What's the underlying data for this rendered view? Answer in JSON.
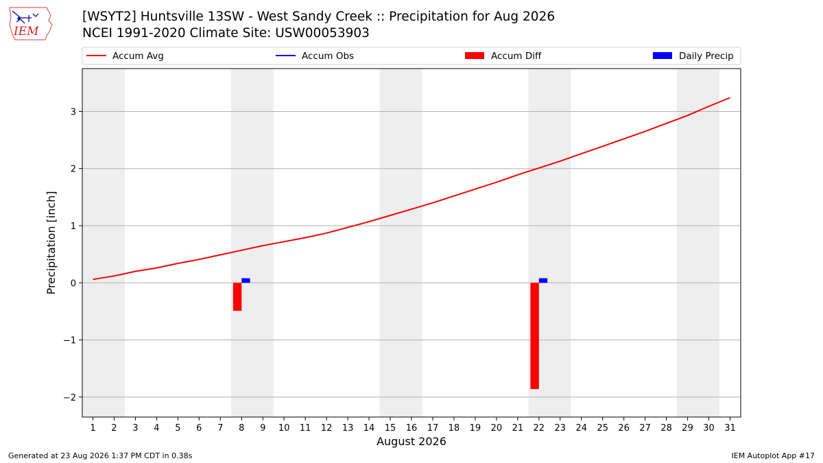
{
  "header": {
    "title": "[WSYT2] Huntsville 13SW - West Sandy Creek :: Precipitation for Aug 2026",
    "subtitle": "NCEI 1991-2020 Climate Site: USW00053903",
    "logo_text": "IEM"
  },
  "footer": {
    "left": "Generated at 23 Aug 2026 1:37 PM CDT in 0.38s",
    "right": "IEM Autoplot App #17"
  },
  "chart_data": {
    "type": "bar",
    "xlabel": "August 2026",
    "ylabel": "Precipitation [inch]",
    "xlim": [
      0.5,
      31.5
    ],
    "ylim": [
      -2.35,
      3.75
    ],
    "yticks": [
      3,
      2,
      1,
      0,
      -1,
      -2
    ],
    "ytick_labels": [
      "3",
      "2",
      "1",
      "0",
      "−1",
      "−2"
    ],
    "grid": "y",
    "legend": {
      "placement": "top",
      "entries": [
        {
          "label": "Accum Avg",
          "type": "line",
          "color": "#ff0000"
        },
        {
          "label": "Accum Obs",
          "type": "line",
          "color": "#0000ff"
        },
        {
          "label": "Accum Diff",
          "type": "bar",
          "color": "#ff0000"
        },
        {
          "label": "Daily Precip",
          "type": "bar",
          "color": "#0000ff"
        }
      ]
    },
    "days": [
      1,
      2,
      3,
      4,
      5,
      6,
      7,
      8,
      9,
      10,
      11,
      12,
      13,
      14,
      15,
      16,
      17,
      18,
      19,
      20,
      21,
      22,
      23,
      24,
      25,
      26,
      27,
      28,
      29,
      30,
      31
    ],
    "weekend_shading": [
      [
        1,
        2
      ],
      [
        8,
        9
      ],
      [
        15,
        16
      ],
      [
        22,
        23
      ],
      [
        29,
        30
      ]
    ],
    "weekend_color": "#eeeeee",
    "series": [
      {
        "name": "Accum Avg",
        "type": "line",
        "color": "#ff0000",
        "x": [
          1,
          2,
          3,
          4,
          5,
          6,
          7,
          8,
          9,
          10,
          11,
          12,
          13,
          14,
          15,
          16,
          17,
          18,
          19,
          20,
          21,
          22,
          23,
          24,
          25,
          26,
          27,
          28,
          29,
          30,
          31
        ],
        "values": [
          0.06,
          0.12,
          0.2,
          0.26,
          0.34,
          0.41,
          0.49,
          0.57,
          0.65,
          0.72,
          0.79,
          0.87,
          0.97,
          1.07,
          1.18,
          1.29,
          1.4,
          1.52,
          1.64,
          1.76,
          1.89,
          2.01,
          2.13,
          2.26,
          2.39,
          2.52,
          2.65,
          2.79,
          2.93,
          3.09,
          3.24
        ]
      },
      {
        "name": "Accum Diff",
        "type": "bar",
        "color": "#ff0000",
        "x": [
          8,
          22
        ],
        "values": [
          -0.49,
          -1.86
        ]
      },
      {
        "name": "Daily Precip",
        "type": "bar",
        "color": "#0000ff",
        "x": [
          8,
          22
        ],
        "values": [
          0.08,
          0.08
        ]
      }
    ]
  }
}
